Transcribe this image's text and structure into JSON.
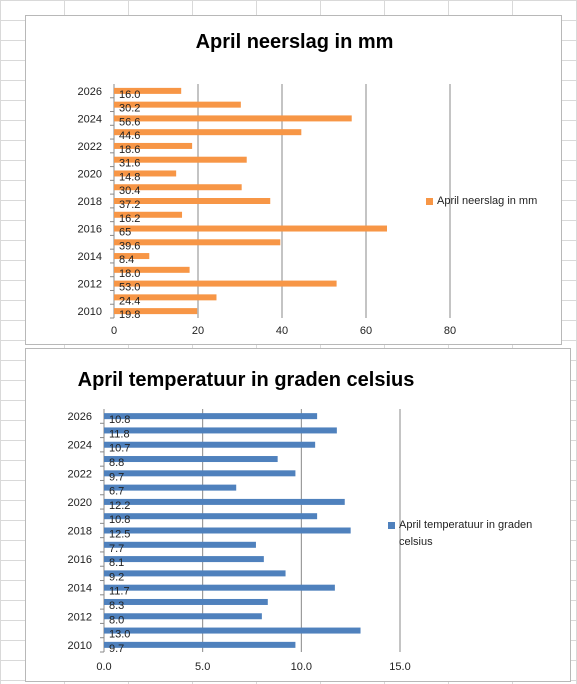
{
  "charts": [
    {
      "type": "bar",
      "orientation": "horizontal",
      "title": "April neerslag in mm",
      "series_name": "April neerslag in mm",
      "color": "#f79646",
      "categories": [
        "2010",
        "2011",
        "2012",
        "2013",
        "2014",
        "2015",
        "2016",
        "2017",
        "2018",
        "2019",
        "2020",
        "2021",
        "2022",
        "2023",
        "2024",
        "2025",
        "2026"
      ],
      "tick_labels_shown": [
        "2010",
        "2012",
        "2014",
        "2016",
        "2018",
        "2020",
        "2022",
        "2024",
        "2026"
      ],
      "values": [
        19.8,
        24.4,
        53.0,
        18.0,
        8.4,
        39.6,
        65,
        16.2,
        37.2,
        30.4,
        14.8,
        31.6,
        18.6,
        44.6,
        56.6,
        30.2,
        16.0
      ],
      "data_labels": [
        "19.8",
        "24.4",
        "53.0",
        "18.0",
        "8.4",
        "39.6",
        "65",
        "16.2",
        "37.2",
        "30.4",
        "14.8",
        "31.6",
        "18.6",
        "44.6",
        "56.6",
        "30.2",
        "16.0"
      ],
      "xlim": [
        0,
        80
      ],
      "x_ticks": [
        "0",
        "20",
        "40",
        "60",
        "80"
      ],
      "grid": "vertical",
      "legend_position": "right"
    },
    {
      "type": "bar",
      "orientation": "horizontal",
      "title": "April temperatuur in graden celsius",
      "series_name": "April temperatuur in graden celsius",
      "color": "#4f81bd",
      "categories": [
        "2010",
        "2011",
        "2012",
        "2013",
        "2014",
        "2015",
        "2016",
        "2017",
        "2018",
        "2019",
        "2020",
        "2021",
        "2022",
        "2023",
        "2024",
        "2025",
        "2026"
      ],
      "tick_labels_shown": [
        "2010",
        "2012",
        "2014",
        "2016",
        "2018",
        "2020",
        "2022",
        "2024",
        "2026"
      ],
      "values": [
        9.7,
        13.0,
        8.0,
        8.3,
        11.7,
        9.2,
        8.1,
        7.7,
        12.5,
        10.8,
        12.2,
        6.7,
        9.7,
        8.8,
        10.7,
        11.8,
        10.8
      ],
      "data_labels": [
        "9.7",
        "13.0",
        "8.0",
        "8.3",
        "11.7",
        "9.2",
        "8.1",
        "7.7",
        "12.5",
        "10.8",
        "12.2",
        "6.7",
        "9.7",
        "8.8",
        "10.7",
        "11.8",
        "10.8"
      ],
      "xlim": [
        0,
        15
      ],
      "x_ticks": [
        "0.0",
        "5.0",
        "10.0",
        "15.0"
      ],
      "grid": "vertical",
      "legend_position": "right"
    }
  ]
}
